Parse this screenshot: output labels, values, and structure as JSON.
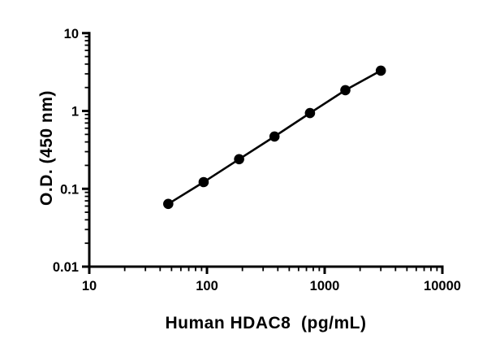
{
  "figure": {
    "background": "#ffffff",
    "foreground": "#000000"
  },
  "chart_data": {
    "type": "line",
    "title": "",
    "xlabel": "Human HDAC8  (pg/mL)",
    "ylabel": "O.D. (450 nm)",
    "x_scale": "log",
    "y_scale": "log",
    "xlim": [
      10,
      10000
    ],
    "ylim": [
      0.01,
      10
    ],
    "x_ticks": [
      {
        "value": 10,
        "label": "10"
      },
      {
        "value": 100,
        "label": "100"
      },
      {
        "value": 1000,
        "label": "1000"
      },
      {
        "value": 10000,
        "label": "10000"
      }
    ],
    "y_ticks": [
      {
        "value": 0.01,
        "label": "0.01"
      },
      {
        "value": 0.1,
        "label": "0.1"
      },
      {
        "value": 1,
        "label": "1"
      },
      {
        "value": 10,
        "label": "10"
      }
    ],
    "minor_ticks": true,
    "grid": false,
    "legend": null,
    "series": [
      {
        "marker": "circle",
        "color": "#000000",
        "points": [
          {
            "x": 46.88,
            "y": 0.064
          },
          {
            "x": 93.75,
            "y": 0.122
          },
          {
            "x": 187.5,
            "y": 0.24
          },
          {
            "x": 375,
            "y": 0.47
          },
          {
            "x": 750,
            "y": 0.94
          },
          {
            "x": 1500,
            "y": 1.85
          },
          {
            "x": 3000,
            "y": 3.3
          }
        ]
      }
    ]
  }
}
